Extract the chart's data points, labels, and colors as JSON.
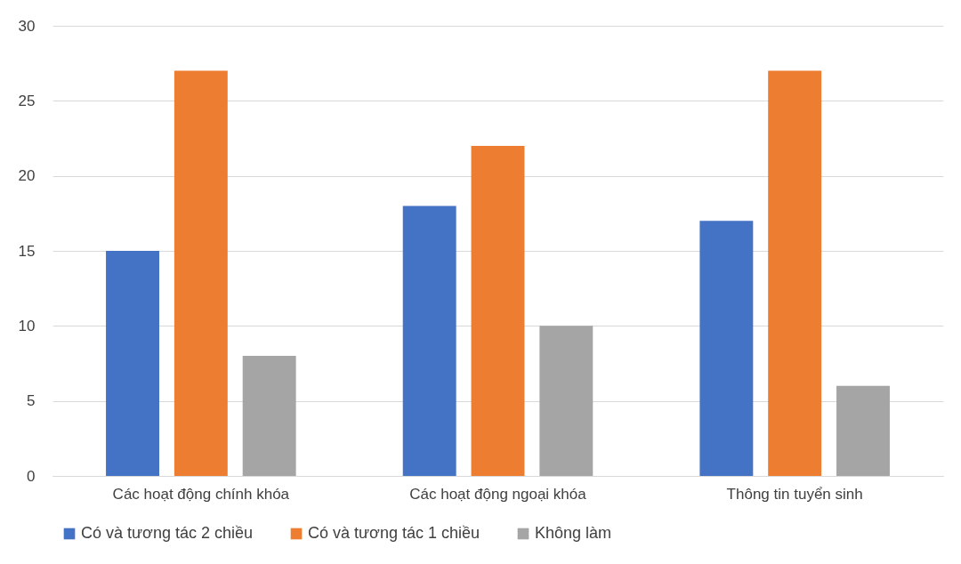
{
  "chart_data": {
    "type": "bar",
    "categories": [
      "Các hoạt động chính khóa",
      "Các hoạt động ngoại khóa",
      "Thông tin tuyển sinh"
    ],
    "series": [
      {
        "name": "Có và tương tác 2 chiều",
        "color": "#4472c4",
        "values": [
          15,
          18,
          17
        ]
      },
      {
        "name": "Có và tương tác 1 chiều",
        "color": "#ed7d31",
        "values": [
          27,
          22,
          27
        ]
      },
      {
        "name": "Không làm",
        "color": "#a5a5a5",
        "values": [
          8,
          10,
          6
        ]
      }
    ],
    "ylim": [
      0,
      30
    ],
    "yticks": [
      0,
      5,
      10,
      15,
      20,
      25,
      30
    ],
    "grid": "y",
    "legend": "bottom"
  }
}
